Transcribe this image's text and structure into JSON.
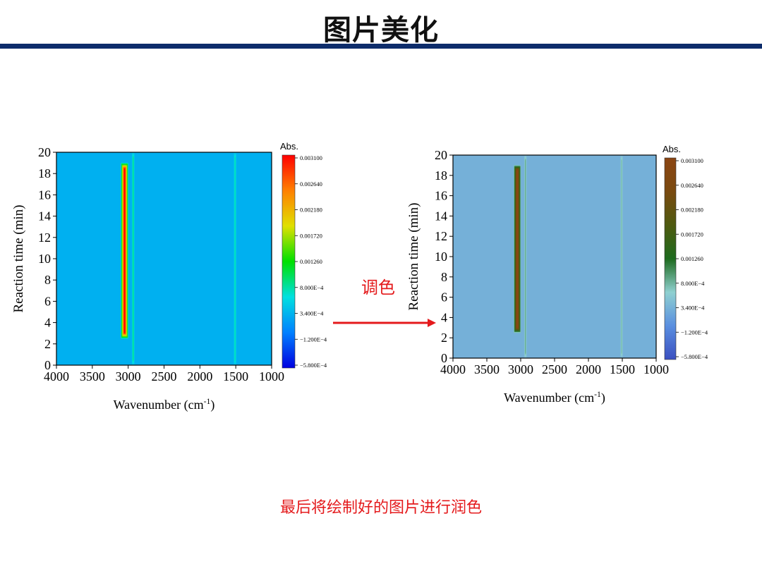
{
  "slide": {
    "title": "图片美化",
    "arrow_label": "调色",
    "caption": "最后将绘制好的图片进行润色"
  },
  "chart_data": [
    {
      "type": "heatmap",
      "xlabel": "Wavenumber (cm-1)",
      "ylabel": "Reaction time (min)",
      "colorbar_title": "Abs.",
      "xlim": [
        4000,
        1000
      ],
      "ylim": [
        0,
        20
      ],
      "x_ticks": [
        "4000",
        "3500",
        "3000",
        "2500",
        "2000",
        "1500",
        "1000"
      ],
      "y_ticks": [
        "0",
        "2",
        "4",
        "6",
        "8",
        "10",
        "12",
        "14",
        "16",
        "18",
        "20"
      ],
      "colorbar_ticks": [
        "0.003100",
        "0.002640",
        "0.002180",
        "0.001720",
        "0.001260",
        "8.000E-4",
        "3.400E-4",
        "-1.200E-4",
        "-5.800E-4"
      ],
      "colorbar_range": [
        -0.00058,
        0.0031
      ],
      "colormap": [
        "#0000e0",
        "#0080ff",
        "#00e0e0",
        "#00e000",
        "#e0e000",
        "#ff8000",
        "#ff0000"
      ],
      "background_value": 0.00034,
      "bands": [
        {
          "x": 3050,
          "peak": 0.0031,
          "tmin": 3,
          "tmax": 18.5
        },
        {
          "x": 2930,
          "peak": 0.0009,
          "tmin": 0.5,
          "tmax": 19.5
        },
        {
          "x": 1510,
          "peak": 0.0008,
          "tmin": 0.5,
          "tmax": 19.5
        }
      ]
    },
    {
      "type": "heatmap",
      "xlabel": "Wavenumber (cm-1)",
      "ylabel": "Reaction time (min)",
      "colorbar_title": "Abs.",
      "xlim": [
        4000,
        1000
      ],
      "ylim": [
        0,
        20
      ],
      "x_ticks": [
        "4000",
        "3500",
        "3000",
        "2500",
        "2000",
        "1500",
        "1000"
      ],
      "y_ticks": [
        "0",
        "2",
        "4",
        "6",
        "8",
        "10",
        "12",
        "14",
        "16",
        "18",
        "20"
      ],
      "colorbar_ticks": [
        "0.003100",
        "0.002640",
        "0.002180",
        "0.001720",
        "0.001260",
        "8.000E-4",
        "3.400E-4",
        "-1.200E-4",
        "-5.800E-4"
      ],
      "colorbar_range": [
        -0.00058,
        0.0031
      ],
      "colormap": [
        "#3a4fc0",
        "#5a8fe0",
        "#8fd0d0",
        "#1e6b1e",
        "#4e5a10",
        "#7a4a10",
        "#8b4513"
      ],
      "background_value": 0.00034,
      "bands": [
        {
          "x": 3050,
          "peak": 0.0031,
          "tmin": 3,
          "tmax": 18.5
        },
        {
          "x": 2930,
          "peak": 0.0009,
          "tmin": 0.5,
          "tmax": 19.5
        },
        {
          "x": 1510,
          "peak": 0.0008,
          "tmin": 0.5,
          "tmax": 19.5
        }
      ]
    }
  ],
  "colors": {
    "title_rule": "#0d2c6b",
    "accent_red": "#e41a1c"
  }
}
